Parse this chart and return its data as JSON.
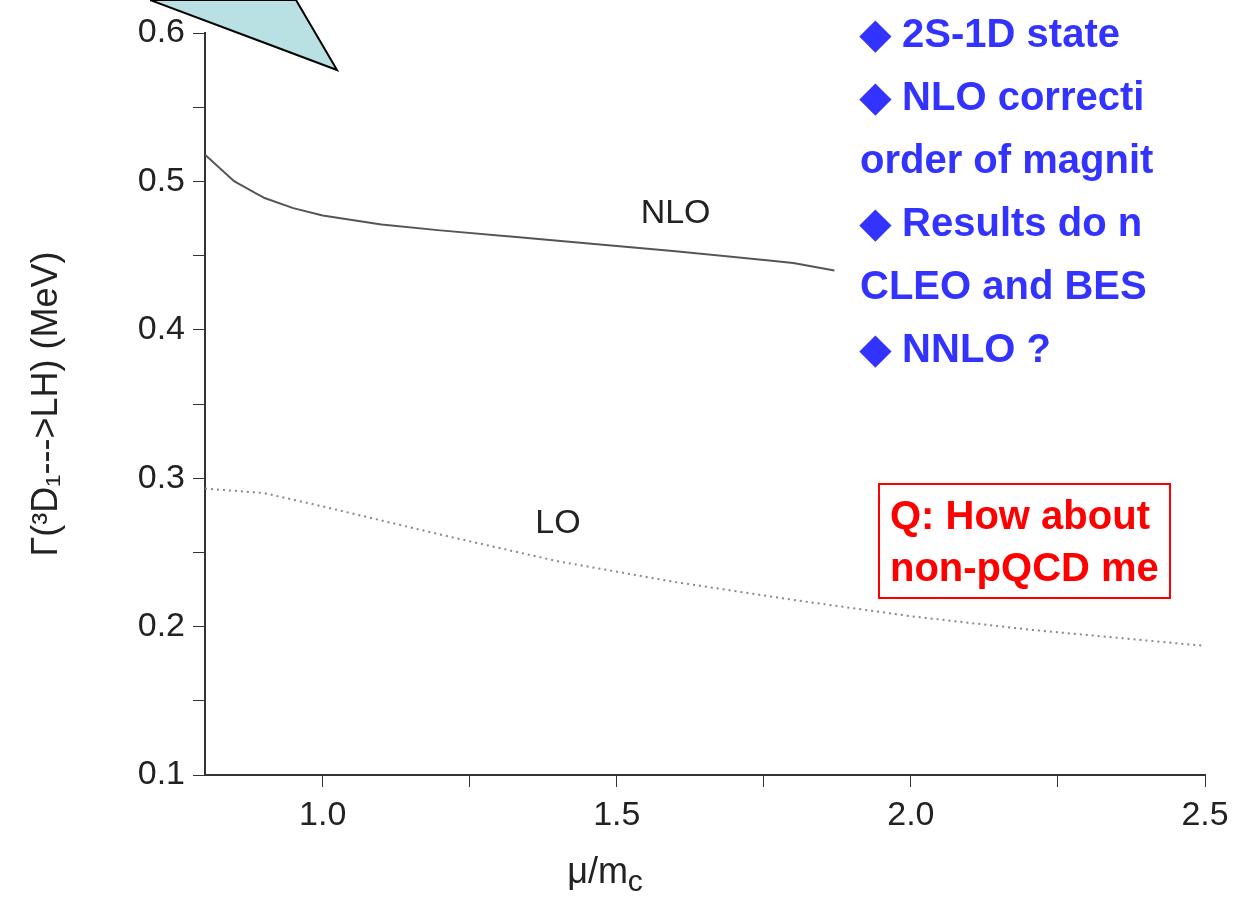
{
  "chart_data": {
    "type": "line",
    "xlabel": "μ/m$_{c}$",
    "ylabel": "Γ(³D₁--->LH) (MeV)",
    "xlim": [
      0.8,
      2.5
    ],
    "xticks": [
      {
        "value": 1,
        "label": "1.0"
      },
      {
        "value": 1.25,
        "label": null
      },
      {
        "value": 1.5,
        "label": "1.5"
      },
      {
        "value": 1.75,
        "label": null
      },
      {
        "value": 2,
        "label": "2.0"
      },
      {
        "value": 2.25,
        "label": null
      },
      {
        "value": 2.5,
        "label": "2.5"
      }
    ],
    "ylim": [
      0.1,
      0.6
    ],
    "yticks": [
      0.1,
      {
        "value": 0.15,
        "label": null
      },
      0.2,
      {
        "value": 0.25,
        "label": null
      },
      0.3,
      {
        "value": 0.35,
        "label": null
      },
      0.4,
      {
        "value": 0.45,
        "label": null
      },
      0.5,
      {
        "value": 0.55,
        "label": null
      },
      0.6
    ],
    "grid": false,
    "legend": false,
    "marker": "none",
    "series": [
      {
        "name": "NLO",
        "color": "#555555",
        "line_style": "solid",
        "x": [
          0.8,
          0.85,
          0.9,
          0.95,
          1.0,
          1.1,
          1.2,
          1.4,
          1.6,
          1.8,
          1.87
        ],
        "values": [
          0.518,
          0.5,
          0.489,
          0.482,
          0.477,
          0.471,
          0.467,
          0.46,
          0.453,
          0.445,
          0.44
        ]
      },
      {
        "name": "LO",
        "color": "#888888",
        "line_style": "dotted",
        "x": [
          0.8,
          0.9,
          1.0,
          1.2,
          1.4,
          1.6,
          1.8,
          2.0,
          2.2,
          2.5
        ],
        "values": [
          0.293,
          0.29,
          0.281,
          0.262,
          0.244,
          0.23,
          0.218,
          0.207,
          0.198,
          0.187
        ]
      }
    ],
    "annotations": [
      "◆ 2S-1D state",
      "◆ NLO correcti",
      "order of magnit",
      "◆ Results do n",
      "CLEO and BES",
      "◆ NNLO ?",
      "Q: How about",
      "non-pQCD me"
    ]
  }
}
